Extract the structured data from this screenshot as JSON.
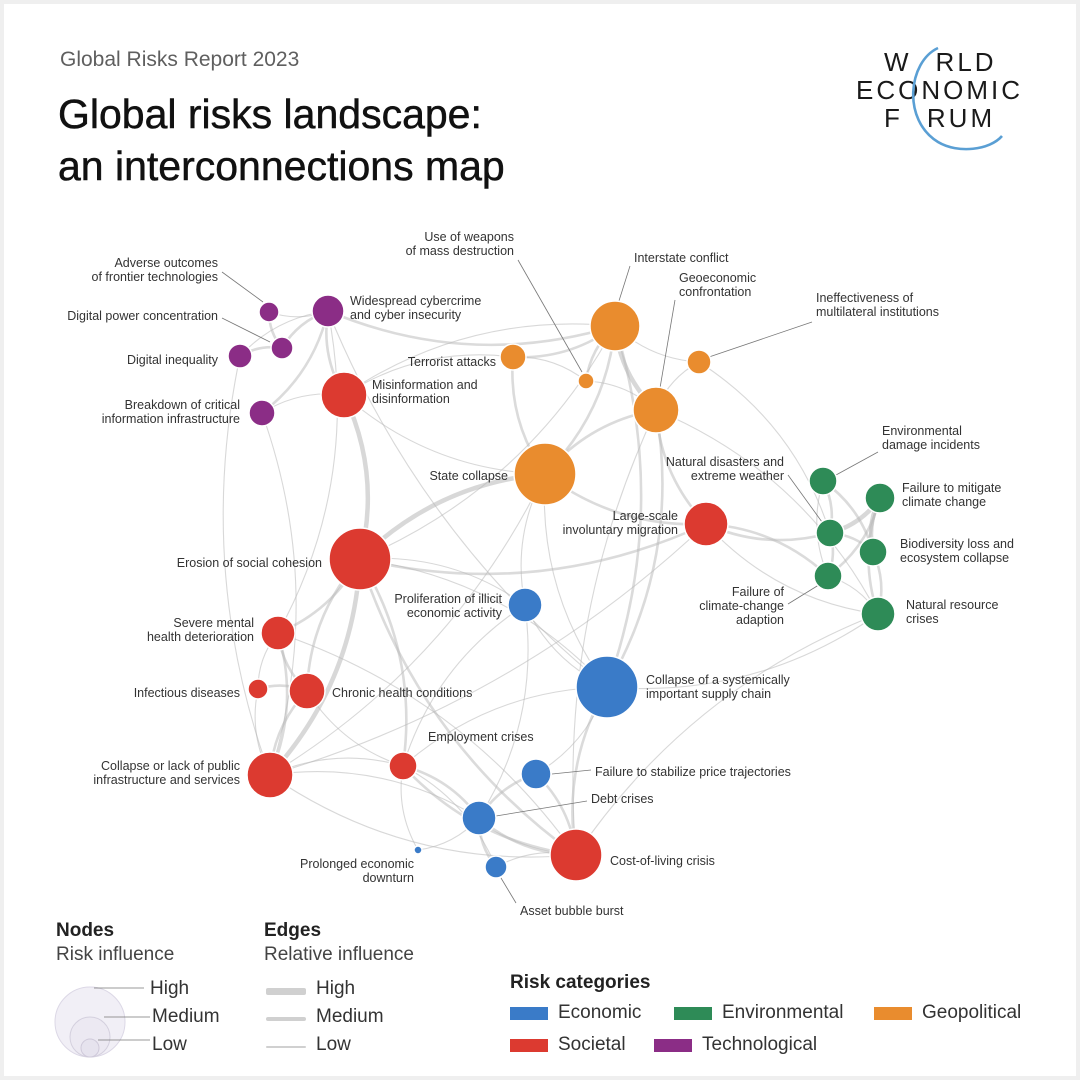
{
  "header": {
    "subtitle": "Global Risks Report 2023",
    "title_line1": "Global risks landscape:",
    "title_line2": "an interconnections map"
  },
  "logo": {
    "line1": "W",
    "line1b": "RLD",
    "line2": "ECONOMIC",
    "line3a": "F",
    "line3b": "RUM"
  },
  "colors": {
    "economic": "#3a7bc8",
    "environmental": "#2e8b57",
    "geopolitical": "#e98c2e",
    "societal": "#dc3a30",
    "technological": "#8b2d86"
  },
  "nodes": [
    {
      "id": "adverse-outcomes",
      "label": [
        "Adverse outcomes",
        "of frontier technologies"
      ],
      "category": "technological",
      "influence": "low"
    },
    {
      "id": "digital-power",
      "label": [
        "Digital power concentration"
      ],
      "category": "technological",
      "influence": "low"
    },
    {
      "id": "digital-inequality",
      "label": [
        "Digital inequality"
      ],
      "category": "technological",
      "influence": "low"
    },
    {
      "id": "breakdown-infrastructure",
      "label": [
        "Breakdown of critical",
        "information infrastructure"
      ],
      "category": "technological",
      "influence": "low"
    },
    {
      "id": "cybercrime",
      "label": [
        "Widespread cybercrime",
        "and cyber insecurity"
      ],
      "category": "technological",
      "influence": "low"
    },
    {
      "id": "misinformation",
      "label": [
        "Misinformation and",
        "disinformation"
      ],
      "category": "societal",
      "influence": "medium"
    },
    {
      "id": "wmd",
      "label": [
        "Use of weapons",
        "of mass destruction"
      ],
      "category": "geopolitical",
      "influence": "low"
    },
    {
      "id": "interstate-conflict",
      "label": [
        "Interstate conflict"
      ],
      "category": "geopolitical",
      "influence": "medium"
    },
    {
      "id": "geoeconomic",
      "label": [
        "Geoeconomic",
        "confrontation"
      ],
      "category": "geopolitical",
      "influence": "medium"
    },
    {
      "id": "multilateral",
      "label": [
        "Ineffectiveness of",
        "multilateral institutions"
      ],
      "category": "geopolitical",
      "influence": "low"
    },
    {
      "id": "terrorist-attacks",
      "label": [
        "Terrorist attacks"
      ],
      "category": "geopolitical",
      "influence": "low"
    },
    {
      "id": "state-collapse",
      "label": [
        "State collapse"
      ],
      "category": "geopolitical",
      "influence": "high"
    },
    {
      "id": "natural-disasters",
      "label": [
        "Natural disasters and",
        "extreme weather"
      ],
      "category": "environmental",
      "influence": "low"
    },
    {
      "id": "env-damage",
      "label": [
        "Environmental",
        "damage incidents"
      ],
      "category": "environmental",
      "influence": "low"
    },
    {
      "id": "climate-mitigation",
      "label": [
        "Failure to mitigate",
        "climate change"
      ],
      "category": "environmental",
      "influence": "low"
    },
    {
      "id": "biodiversity",
      "label": [
        "Biodiversity loss and",
        "ecosystem collapse"
      ],
      "category": "environmental",
      "influence": "low"
    },
    {
      "id": "climate-adaption",
      "label": [
        "Failure of",
        "climate-change",
        "adaption"
      ],
      "category": "environmental",
      "influence": "low"
    },
    {
      "id": "natural-resource",
      "label": [
        "Natural resource",
        "crises"
      ],
      "category": "environmental",
      "influence": "low"
    },
    {
      "id": "migration",
      "label": [
        "Large-scale",
        "involuntary migration"
      ],
      "category": "societal",
      "influence": "medium"
    },
    {
      "id": "social-cohesion",
      "label": [
        "Erosion of social cohesion"
      ],
      "category": "societal",
      "influence": "high"
    },
    {
      "id": "illicit-activity",
      "label": [
        "Proliferation of illicit",
        "economic activity"
      ],
      "category": "economic",
      "influence": "low"
    },
    {
      "id": "mental-health",
      "label": [
        "Severe mental",
        "health deterioration"
      ],
      "category": "societal",
      "influence": "low"
    },
    {
      "id": "infectious-diseases",
      "label": [
        "Infectious diseases"
      ],
      "category": "societal",
      "influence": "low"
    },
    {
      "id": "chronic-health",
      "label": [
        "Chronic health conditions"
      ],
      "category": "societal",
      "influence": "low"
    },
    {
      "id": "supply-chain",
      "label": [
        "Collapse of a systemically",
        "important supply chain"
      ],
      "category": "economic",
      "influence": "high"
    },
    {
      "id": "employment",
      "label": [
        "Employment crises"
      ],
      "category": "societal",
      "influence": "low"
    },
    {
      "id": "public-infrastructure",
      "label": [
        "Collapse or lack of public",
        "infrastructure and services"
      ],
      "category": "societal",
      "influence": "medium"
    },
    {
      "id": "price-trajectories",
      "label": [
        "Failure to stabilize price trajectories"
      ],
      "category": "economic",
      "influence": "low"
    },
    {
      "id": "debt-crises",
      "label": [
        "Debt crises"
      ],
      "category": "economic",
      "influence": "low"
    },
    {
      "id": "economic-downturn",
      "label": [
        "Prolonged economic",
        "downturn"
      ],
      "category": "economic",
      "influence": "low"
    },
    {
      "id": "cost-of-living",
      "label": [
        "Cost-of-living crisis"
      ],
      "category": "societal",
      "influence": "high"
    },
    {
      "id": "asset-bubble",
      "label": [
        "Asset bubble burst"
      ],
      "category": "economic",
      "influence": "low"
    }
  ],
  "edges": [
    {
      "from": "social-cohesion",
      "to": "state-collapse",
      "influence": "high"
    },
    {
      "from": "social-cohesion",
      "to": "misinformation",
      "influence": "high"
    },
    {
      "from": "social-cohesion",
      "to": "public-infrastructure",
      "influence": "high"
    },
    {
      "from": "social-cohesion",
      "to": "chronic-health",
      "influence": "medium"
    },
    {
      "from": "social-cohesion",
      "to": "mental-health",
      "influence": "medium"
    },
    {
      "from": "social-cohesion",
      "to": "migration",
      "influence": "medium"
    },
    {
      "from": "social-cohesion",
      "to": "employment",
      "influence": "medium"
    },
    {
      "from": "social-cohesion",
      "to": "cost-of-living",
      "influence": "medium"
    },
    {
      "from": "social-cohesion",
      "to": "illicit-activity",
      "influence": "low"
    },
    {
      "from": "social-cohesion",
      "to": "interstate-conflict",
      "influence": "low"
    },
    {
      "from": "social-cohesion",
      "to": "supply-chain",
      "influence": "low"
    },
    {
      "from": "state-collapse",
      "to": "interstate-conflict",
      "influence": "medium"
    },
    {
      "from": "state-collapse",
      "to": "geoeconomic",
      "influence": "medium"
    },
    {
      "from": "state-collapse",
      "to": "migration",
      "influence": "medium"
    },
    {
      "from": "state-collapse",
      "to": "terrorist-attacks",
      "influence": "medium"
    },
    {
      "from": "state-collapse",
      "to": "illicit-activity",
      "influence": "low"
    },
    {
      "from": "state-collapse",
      "to": "misinformation",
      "influence": "low"
    },
    {
      "from": "state-collapse",
      "to": "supply-chain",
      "influence": "low"
    },
    {
      "from": "state-collapse",
      "to": "public-infrastructure",
      "influence": "low"
    },
    {
      "from": "interstate-conflict",
      "to": "geoeconomic",
      "influence": "high"
    },
    {
      "from": "interstate-conflict",
      "to": "terrorist-attacks",
      "influence": "medium"
    },
    {
      "from": "interstate-conflict",
      "to": "wmd",
      "influence": "medium"
    },
    {
      "from": "interstate-conflict",
      "to": "cybercrime",
      "influence": "medium"
    },
    {
      "from": "interstate-conflict",
      "to": "multilateral",
      "influence": "low"
    },
    {
      "from": "interstate-conflict",
      "to": "supply-chain",
      "influence": "medium"
    },
    {
      "from": "interstate-conflict",
      "to": "misinformation",
      "influence": "low"
    },
    {
      "from": "geoeconomic",
      "to": "supply-chain",
      "influence": "medium"
    },
    {
      "from": "geoeconomic",
      "to": "migration",
      "influence": "medium"
    },
    {
      "from": "geoeconomic",
      "to": "multilateral",
      "influence": "low"
    },
    {
      "from": "geoeconomic",
      "to": "wmd",
      "influence": "low"
    },
    {
      "from": "geoeconomic",
      "to": "natural-resource",
      "influence": "low"
    },
    {
      "from": "geoeconomic",
      "to": "cost-of-living",
      "influence": "low"
    },
    {
      "from": "misinformation",
      "to": "cybercrime",
      "influence": "medium"
    },
    {
      "from": "misinformation",
      "to": "breakdown-infrastructure",
      "influence": "low"
    },
    {
      "from": "misinformation",
      "to": "terrorist-attacks",
      "influence": "low"
    },
    {
      "from": "cybercrime",
      "to": "digital-power",
      "influence": "medium"
    },
    {
      "from": "cybercrime",
      "to": "adverse-outcomes",
      "influence": "low"
    },
    {
      "from": "cybercrime",
      "to": "digital-inequality",
      "influence": "low"
    },
    {
      "from": "cybercrime",
      "to": "breakdown-infrastructure",
      "influence": "medium"
    },
    {
      "from": "cybercrime",
      "to": "supply-chain",
      "influence": "low"
    },
    {
      "from": "cybercrime",
      "to": "mental-health",
      "influence": "low"
    },
    {
      "from": "digital-power",
      "to": "digital-inequality",
      "influence": "medium"
    },
    {
      "from": "digital-power",
      "to": "adverse-outcomes",
      "influence": "medium"
    },
    {
      "from": "digital-inequality",
      "to": "public-infrastructure",
      "influence": "low"
    },
    {
      "from": "breakdown-infrastructure",
      "to": "public-infrastructure",
      "influence": "low"
    },
    {
      "from": "migration",
      "to": "natural-disasters",
      "influence": "medium"
    },
    {
      "from": "migration",
      "to": "climate-adaption",
      "influence": "medium"
    },
    {
      "from": "migration",
      "to": "natural-resource",
      "influence": "low"
    },
    {
      "from": "migration",
      "to": "public-infrastructure",
      "influence": "low"
    },
    {
      "from": "natural-disasters",
      "to": "climate-mitigation",
      "influence": "high"
    },
    {
      "from": "natural-disasters",
      "to": "biodiversity",
      "influence": "medium"
    },
    {
      "from": "natural-disasters",
      "to": "env-damage",
      "influence": "medium"
    },
    {
      "from": "natural-disasters",
      "to": "climate-adaption",
      "influence": "medium"
    },
    {
      "from": "climate-mitigation",
      "to": "biodiversity",
      "influence": "high"
    },
    {
      "from": "climate-mitigation",
      "to": "climate-adaption",
      "influence": "medium"
    },
    {
      "from": "climate-mitigation",
      "to": "natural-resource",
      "influence": "medium"
    },
    {
      "from": "biodiversity",
      "to": "natural-resource",
      "influence": "medium"
    },
    {
      "from": "biodiversity",
      "to": "env-damage",
      "influence": "medium"
    },
    {
      "from": "climate-adaption",
      "to": "natural-resource",
      "influence": "low"
    },
    {
      "from": "env-damage",
      "to": "climate-adaption",
      "influence": "low"
    },
    {
      "from": "natural-resource",
      "to": "supply-chain",
      "influence": "low"
    },
    {
      "from": "natural-resource",
      "to": "cost-of-living",
      "influence": "low"
    },
    {
      "from": "multilateral",
      "to": "natural-disasters",
      "influence": "low"
    },
    {
      "from": "supply-chain",
      "to": "cost-of-living",
      "influence": "medium"
    },
    {
      "from": "supply-chain",
      "to": "price-trajectories",
      "influence": "low"
    },
    {
      "from": "supply-chain",
      "to": "employment",
      "influence": "low"
    },
    {
      "from": "supply-chain",
      "to": "illicit-activity",
      "influence": "low"
    },
    {
      "from": "illicit-activity",
      "to": "employment",
      "influence": "low"
    },
    {
      "from": "illicit-activity",
      "to": "debt-crises",
      "influence": "low"
    },
    {
      "from": "employment",
      "to": "cost-of-living",
      "influence": "medium"
    },
    {
      "from": "employment",
      "to": "debt-crises",
      "influence": "medium"
    },
    {
      "from": "employment",
      "to": "public-infrastructure",
      "influence": "low"
    },
    {
      "from": "employment",
      "to": "chronic-health",
      "influence": "low"
    },
    {
      "from": "employment",
      "to": "economic-downturn",
      "influence": "low"
    },
    {
      "from": "employment",
      "to": "asset-bubble",
      "influence": "low"
    },
    {
      "from": "debt-crises",
      "to": "cost-of-living",
      "influence": "medium"
    },
    {
      "from": "debt-crises",
      "to": "price-trajectories",
      "influence": "medium"
    },
    {
      "from": "debt-crises",
      "to": "asset-bubble",
      "influence": "medium"
    },
    {
      "from": "debt-crises",
      "to": "economic-downturn",
      "influence": "low"
    },
    {
      "from": "debt-crises",
      "to": "public-infrastructure",
      "influence": "low"
    },
    {
      "from": "price-trajectories",
      "to": "cost-of-living",
      "influence": "medium"
    },
    {
      "from": "cost-of-living",
      "to": "asset-bubble",
      "influence": "low"
    },
    {
      "from": "cost-of-living",
      "to": "public-infrastructure",
      "influence": "low"
    },
    {
      "from": "cost-of-living",
      "to": "mental-health",
      "influence": "low"
    },
    {
      "from": "public-infrastructure",
      "to": "chronic-health",
      "influence": "medium"
    },
    {
      "from": "public-infrastructure",
      "to": "mental-health",
      "influence": "medium"
    },
    {
      "from": "public-infrastructure",
      "to": "infectious-diseases",
      "influence": "low"
    },
    {
      "from": "chronic-health",
      "to": "infectious-diseases",
      "influence": "medium"
    },
    {
      "from": "chronic-health",
      "to": "mental-health",
      "influence": "medium"
    },
    {
      "from": "mental-health",
      "to": "infectious-diseases",
      "influence": "low"
    },
    {
      "from": "terrorist-attacks",
      "to": "wmd",
      "influence": "low"
    }
  ],
  "legend": {
    "nodes_heading": "Nodes",
    "nodes_sub": "Risk influence",
    "edges_heading": "Edges",
    "edges_sub": "Relative influence",
    "high": "High",
    "medium": "Medium",
    "low": "Low",
    "categories_heading": "Risk categories",
    "categories": [
      {
        "key": "economic",
        "label": "Economic"
      },
      {
        "key": "environmental",
        "label": "Environmental"
      },
      {
        "key": "geopolitical",
        "label": "Geopolitical"
      },
      {
        "key": "societal",
        "label": "Societal"
      },
      {
        "key": "technological",
        "label": "Technological"
      }
    ]
  }
}
